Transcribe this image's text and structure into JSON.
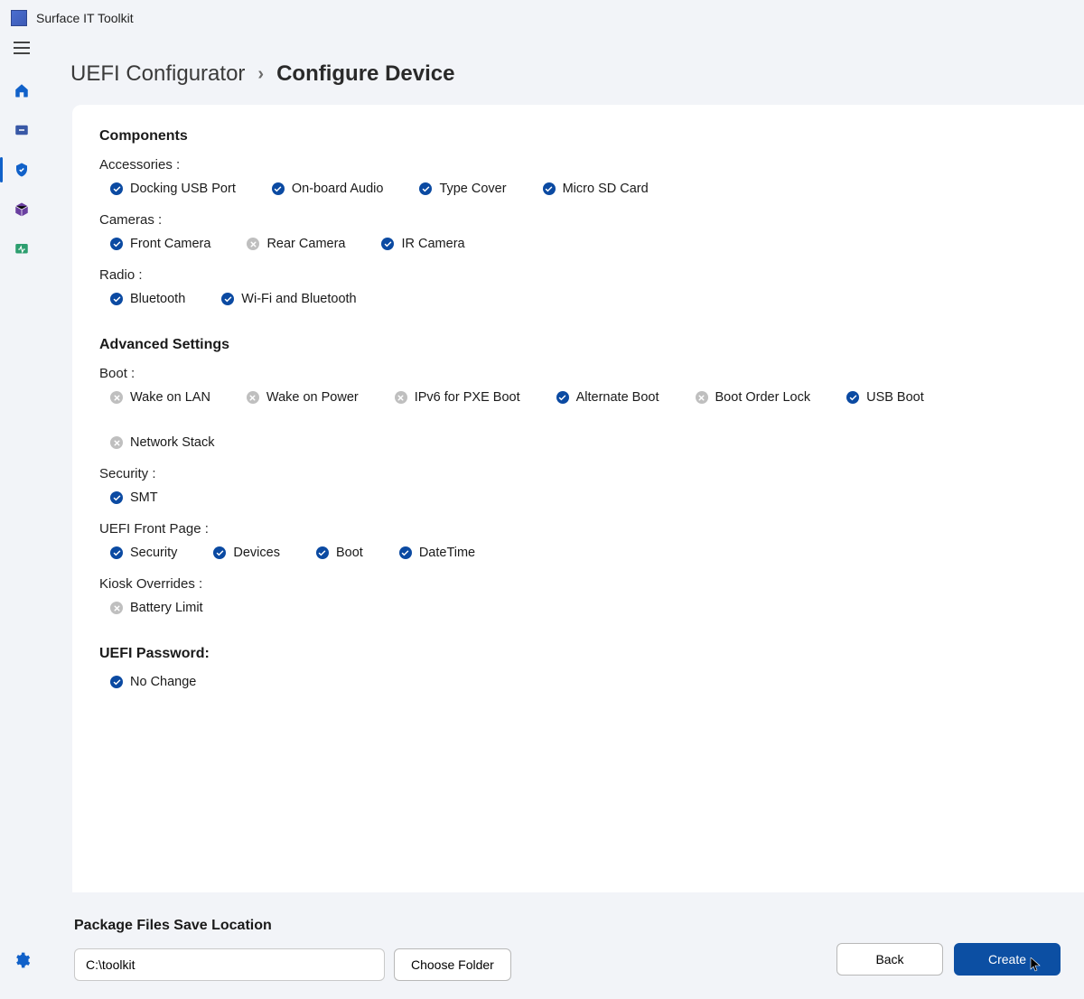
{
  "app": {
    "title": "Surface IT Toolkit"
  },
  "breadcrumb": {
    "parent": "UEFI Configurator",
    "current": "Configure Device"
  },
  "colors": {
    "accent": "#0c4fa3",
    "status_on": "#0b4aa2",
    "status_off": "#bfbfbf",
    "background": "#f2f4f8"
  },
  "sections": {
    "components": {
      "title": "Components",
      "groups": {
        "accessories": {
          "label": "Accessories :",
          "items": [
            {
              "label": "Docking USB Port",
              "on": true
            },
            {
              "label": "On-board Audio",
              "on": true
            },
            {
              "label": "Type Cover",
              "on": true
            },
            {
              "label": "Micro SD Card",
              "on": true
            }
          ]
        },
        "cameras": {
          "label": "Cameras :",
          "items": [
            {
              "label": "Front Camera",
              "on": true
            },
            {
              "label": "Rear Camera",
              "on": false
            },
            {
              "label": "IR Camera",
              "on": true
            }
          ]
        },
        "radio": {
          "label": "Radio :",
          "items": [
            {
              "label": "Bluetooth",
              "on": true
            },
            {
              "label": "Wi-Fi and Bluetooth",
              "on": true
            }
          ]
        }
      }
    },
    "advanced": {
      "title": "Advanced Settings",
      "groups": {
        "boot": {
          "label": "Boot :",
          "items": [
            {
              "label": "Wake on LAN",
              "on": false
            },
            {
              "label": "Wake on Power",
              "on": false
            },
            {
              "label": "IPv6 for PXE Boot",
              "on": false
            },
            {
              "label": "Alternate Boot",
              "on": true
            },
            {
              "label": "Boot Order Lock",
              "on": false
            },
            {
              "label": "USB Boot",
              "on": true
            },
            {
              "label": "Network Stack",
              "on": false
            }
          ]
        },
        "security": {
          "label": "Security :",
          "items": [
            {
              "label": "SMT",
              "on": true
            }
          ]
        },
        "frontpage": {
          "label": "UEFI Front Page :",
          "items": [
            {
              "label": "Security",
              "on": true
            },
            {
              "label": "Devices",
              "on": true
            },
            {
              "label": "Boot",
              "on": true
            },
            {
              "label": "DateTime",
              "on": true
            }
          ]
        },
        "kiosk": {
          "label": "Kiosk Overrides :",
          "items": [
            {
              "label": "Battery Limit",
              "on": false
            }
          ]
        }
      }
    },
    "password": {
      "title": "UEFI Password:",
      "items": [
        {
          "label": "No Change",
          "on": true
        }
      ]
    }
  },
  "save": {
    "title": "Package Files Save Location",
    "path": "C:\\toolkit",
    "choose_label": "Choose Folder"
  },
  "actions": {
    "back": "Back",
    "create": "Create"
  }
}
